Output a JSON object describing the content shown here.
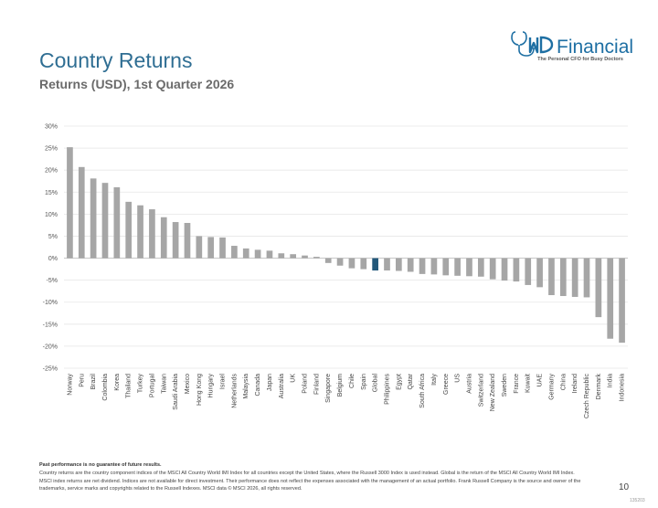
{
  "header": {
    "title": "Country Returns",
    "subtitle": "Returns (USD), 1st Quarter 2026"
  },
  "logo": {
    "wordmark": "Financial",
    "mark_text": "YMD",
    "tagline": "The Personal CFO for Busy Doctors",
    "brand_color": "#1e6fa3"
  },
  "chart_data": {
    "type": "bar",
    "title": "",
    "xlabel": "",
    "ylabel": "",
    "ylim": [
      -25,
      30
    ],
    "yticks": [
      30,
      25,
      20,
      15,
      10,
      5,
      0,
      -5,
      -10,
      -15,
      -20,
      -25
    ],
    "ytick_labels": [
      "30%",
      "25%",
      "20%",
      "15%",
      "10%",
      "5%",
      "0%",
      "-5%",
      "-10%",
      "-15%",
      "-20%",
      "-25%"
    ],
    "grid": true,
    "legend": "none",
    "bar_color": "#a6a6a6",
    "highlight_color": "#23587a",
    "highlight_category": "Global",
    "categories": [
      "Norway",
      "Peru",
      "Brazil",
      "Colombia",
      "Korea",
      "Thailand",
      "Turkey",
      "Portugal",
      "Taiwan",
      "Saudi Arabia",
      "Mexico",
      "Hong Kong",
      "Hungary",
      "Israel",
      "Netherlands",
      "Malaysia",
      "Canada",
      "Japan",
      "Australia",
      "UK",
      "Poland",
      "Finland",
      "Singapore",
      "Belgium",
      "Chile",
      "Spain",
      "Global",
      "Philippines",
      "Egypt",
      "Qatar",
      "South Africa",
      "Italy",
      "Greece",
      "US",
      "Austria",
      "Switzerland",
      "New Zealand",
      "Sweden",
      "France",
      "Kuwait",
      "UAE",
      "Germany",
      "China",
      "Ireland",
      "Czech Republic",
      "Denmark",
      "India",
      "Indonesia"
    ],
    "values": [
      25.2,
      20.7,
      18.1,
      17.1,
      16.1,
      12.8,
      12.0,
      11.1,
      9.3,
      8.2,
      8.0,
      5.0,
      4.8,
      4.7,
      2.8,
      2.2,
      1.9,
      1.7,
      1.1,
      0.9,
      0.6,
      0.3,
      -1.1,
      -1.7,
      -2.3,
      -2.5,
      -2.8,
      -2.8,
      -2.9,
      -3.1,
      -3.6,
      -3.7,
      -3.9,
      -4.0,
      -4.1,
      -4.2,
      -4.8,
      -5.1,
      -5.3,
      -6.1,
      -6.6,
      -8.4,
      -8.6,
      -8.8,
      -8.9,
      -13.4,
      -18.3,
      -19.2
    ]
  },
  "footer": {
    "disclaimer_head": "Past performance is no guarantee of future results.",
    "disclaimer_body": "Country returns are the country component indices of the MSCI All Country World IMI Index for all countries except the United States, where the Russell 3000 Index is used instead. Global is the return of the MSCI All Country World IMI Index. MSCI index returns are net dividend. Indices are not available for direct investment. Their performance does not reflect the expenses associated with the management of an actual portfolio. Frank Russell Company is the source and owner of the trademarks, service marks and copyrights related to the Russell Indexes. MSCI data © MSCI 2026, all rights reserved.",
    "page_number": "10",
    "slide_id": "135203"
  }
}
